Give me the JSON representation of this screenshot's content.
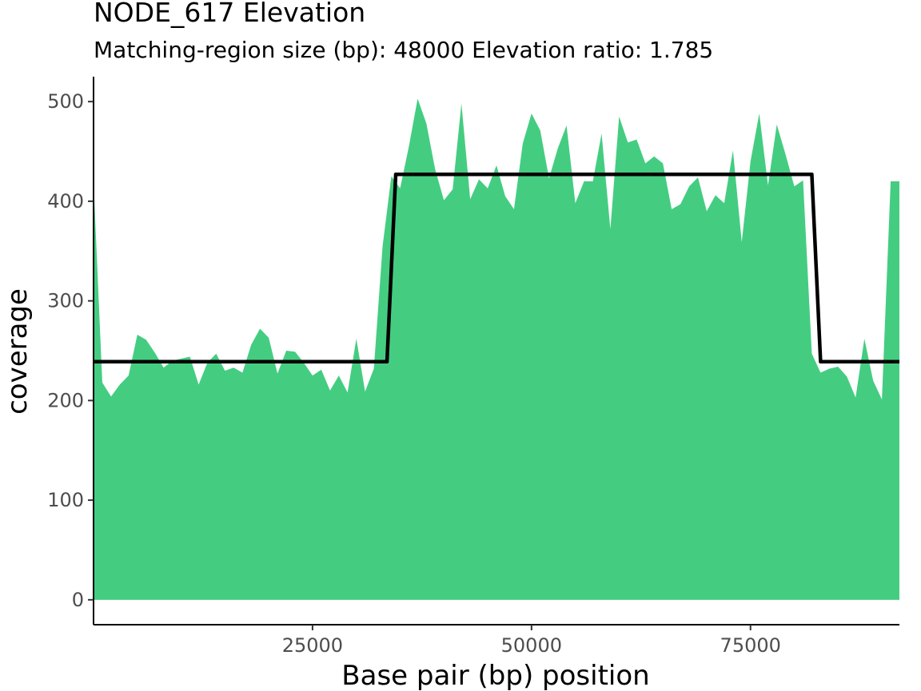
{
  "chart_data": {
    "type": "area",
    "title": "NODE_617 Elevation",
    "subtitle": "Matching-region size (bp): 48000 Elevation ratio: 1.785",
    "xlabel": "Base pair (bp) position",
    "ylabel": "coverage",
    "xlim": [
      0,
      92000
    ],
    "ylim": [
      -25,
      525
    ],
    "x_ticks": [
      25000,
      50000,
      75000
    ],
    "y_ticks": [
      0,
      100,
      200,
      300,
      400,
      500
    ],
    "grid": false,
    "legend": "none",
    "colors": {
      "area": "#44cd81",
      "line": "#000000",
      "axis": "#000000",
      "tick_label": "#4d4d4d"
    },
    "coverage": {
      "x": [
        0,
        1000,
        2000,
        3000,
        4000,
        5000,
        6000,
        7000,
        8000,
        9000,
        10000,
        11000,
        12000,
        13000,
        14000,
        15000,
        16000,
        17000,
        18000,
        19000,
        20000,
        21000,
        22000,
        23000,
        24000,
        25000,
        26000,
        27000,
        28000,
        29000,
        30000,
        31000,
        32000,
        33000,
        34000,
        35000,
        36000,
        37000,
        38000,
        39000,
        40000,
        41000,
        42000,
        43000,
        44000,
        45000,
        46000,
        47000,
        48000,
        49000,
        50000,
        51000,
        52000,
        53000,
        54000,
        55000,
        56000,
        57000,
        58000,
        59000,
        60000,
        61000,
        62000,
        63000,
        64000,
        65000,
        66000,
        67000,
        68000,
        69000,
        70000,
        71000,
        72000,
        73000,
        74000,
        75000,
        76000,
        77000,
        78000,
        79000,
        80000,
        81000,
        82000,
        83000,
        84000,
        85000,
        86000,
        87000,
        88000,
        89000,
        90000,
        91000,
        92000
      ],
      "y": [
        420,
        218,
        204,
        216,
        225,
        266,
        261,
        248,
        233,
        240,
        242,
        244,
        216,
        238,
        247,
        230,
        233,
        228,
        256,
        272,
        263,
        227,
        250,
        249,
        238,
        225,
        231,
        210,
        225,
        208,
        262,
        209,
        232,
        355,
        425,
        413,
        455,
        503,
        478,
        432,
        401,
        412,
        498,
        402,
        422,
        413,
        436,
        405,
        392,
        458,
        488,
        471,
        423,
        453,
        476,
        398,
        420,
        420,
        468,
        372,
        485,
        459,
        462,
        438,
        445,
        438,
        392,
        397,
        415,
        424,
        390,
        406,
        398,
        451,
        359,
        440,
        488,
        416,
        477,
        447,
        415,
        421,
        247,
        228,
        232,
        234,
        224,
        203,
        262,
        220,
        201,
        420,
        420
      ]
    },
    "elevation_line": {
      "x": [
        0,
        33500,
        34500,
        82000,
        83000,
        92000
      ],
      "y": [
        239,
        239,
        427,
        427,
        239,
        239
      ]
    }
  }
}
